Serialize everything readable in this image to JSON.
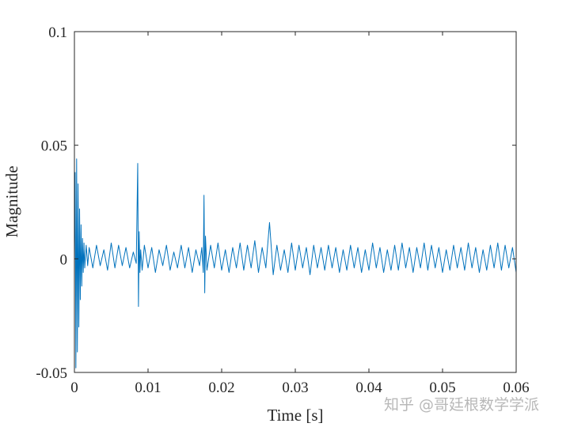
{
  "chart_data": {
    "type": "line",
    "title": "",
    "xlabel": "Time [s]",
    "ylabel": "Magnitude",
    "xlim": [
      0,
      0.06
    ],
    "ylim": [
      -0.05,
      0.1
    ],
    "x_ticks": [
      {
        "value": 0,
        "label": "0"
      },
      {
        "value": 0.01,
        "label": "0.01"
      },
      {
        "value": 0.02,
        "label": "0.02"
      },
      {
        "value": 0.03,
        "label": "0.03"
      },
      {
        "value": 0.04,
        "label": "0.04"
      },
      {
        "value": 0.05,
        "label": "0.05"
      },
      {
        "value": 0.06,
        "label": "0.06"
      }
    ],
    "y_ticks": [
      {
        "value": -0.05,
        "label": "-0.05"
      },
      {
        "value": 0,
        "label": "0"
      },
      {
        "value": 0.05,
        "label": "0.05"
      },
      {
        "value": 0.1,
        "label": "0.1"
      }
    ],
    "grid": false,
    "legend": "none",
    "line_color": "#0072BD",
    "series": [
      {
        "x": [
          0,
          0.0001,
          0.0002,
          0.0003,
          0.0004,
          0.0005,
          0.0006,
          0.0007,
          0.0008,
          0.0009,
          0.001,
          0.0011,
          0.0012,
          0.0013,
          0.0014,
          0.0016,
          0.0018,
          0.002,
          0.0025,
          0.003,
          0.0035,
          0.004,
          0.0045,
          0.005,
          0.0055,
          0.006,
          0.0065,
          0.007,
          0.0075,
          0.008,
          0.0084,
          0.0086,
          0.0087,
          0.0088,
          0.0089,
          0.009,
          0.0092,
          0.0095,
          0.01,
          0.0105,
          0.011,
          0.0115,
          0.012,
          0.0125,
          0.013,
          0.0135,
          0.014,
          0.0145,
          0.015,
          0.0155,
          0.016,
          0.0165,
          0.017,
          0.0173,
          0.0175,
          0.0176,
          0.0177,
          0.0178,
          0.018,
          0.0185,
          0.019,
          0.0195,
          0.02,
          0.0205,
          0.021,
          0.0215,
          0.022,
          0.0225,
          0.023,
          0.0235,
          0.024,
          0.0245,
          0.025,
          0.0255,
          0.026,
          0.0265,
          0.027,
          0.0275,
          0.028,
          0.0285,
          0.029,
          0.0295,
          0.03,
          0.0305,
          0.031,
          0.0315,
          0.032,
          0.0325,
          0.033,
          0.0335,
          0.034,
          0.0345,
          0.035,
          0.0355,
          0.036,
          0.0365,
          0.037,
          0.0375,
          0.038,
          0.0385,
          0.039,
          0.0395,
          0.04,
          0.0405,
          0.041,
          0.0415,
          0.042,
          0.0425,
          0.043,
          0.0435,
          0.044,
          0.0445,
          0.045,
          0.0455,
          0.046,
          0.0465,
          0.047,
          0.0475,
          0.048,
          0.0485,
          0.049,
          0.0495,
          0.05,
          0.0505,
          0.051,
          0.0515,
          0.052,
          0.0525,
          0.053,
          0.0535,
          0.054,
          0.0545,
          0.055,
          0.0555,
          0.056,
          0.0565,
          0.057,
          0.0575,
          0.058,
          0.0585,
          0.059,
          0.0595,
          0.06
        ],
        "y": [
          0,
          0.038,
          -0.048,
          0.044,
          -0.041,
          0.033,
          -0.03,
          0.022,
          -0.018,
          0.015,
          -0.012,
          0.009,
          -0.006,
          0.007,
          -0.004,
          0.006,
          -0.003,
          0.005,
          -0.004,
          0.006,
          -0.003,
          0.004,
          -0.005,
          0.007,
          -0.004,
          0.006,
          -0.003,
          0.005,
          -0.004,
          0.003,
          -0.002,
          0.042,
          -0.021,
          0.012,
          -0.006,
          0.004,
          -0.005,
          0.006,
          -0.004,
          0.005,
          -0.006,
          0.004,
          -0.003,
          0.006,
          -0.005,
          0.003,
          -0.004,
          0.006,
          -0.004,
          0.005,
          -0.006,
          0.004,
          -0.003,
          0.005,
          -0.006,
          0.028,
          -0.015,
          0.01,
          -0.005,
          0.006,
          -0.004,
          0.007,
          -0.005,
          0.004,
          -0.006,
          0.005,
          -0.004,
          0.007,
          -0.005,
          0.006,
          -0.004,
          0.008,
          -0.006,
          0.005,
          -0.004,
          0.016,
          -0.007,
          0.006,
          -0.005,
          0.004,
          -0.006,
          0.007,
          -0.005,
          0.006,
          -0.004,
          0.005,
          -0.007,
          0.006,
          -0.004,
          0.005,
          -0.005,
          0.006,
          -0.004,
          0.005,
          -0.006,
          0.004,
          -0.005,
          0.006,
          -0.004,
          0.005,
          -0.006,
          0.004,
          -0.005,
          0.007,
          -0.004,
          0.005,
          -0.006,
          0.004,
          -0.005,
          0.006,
          -0.005,
          0.007,
          -0.004,
          0.005,
          -0.006,
          0.005,
          -0.004,
          0.007,
          -0.005,
          0.006,
          -0.004,
          0.005,
          -0.006,
          0.004,
          -0.005,
          0.006,
          -0.004,
          0.005,
          -0.005,
          0.007,
          -0.004,
          0.005,
          -0.006,
          0.004,
          -0.005,
          0.006,
          -0.004,
          0.007,
          -0.005,
          0.006,
          -0.004,
          0.005,
          -0.006
        ]
      }
    ]
  },
  "watermark": "知乎 @哥廷根数学学派"
}
